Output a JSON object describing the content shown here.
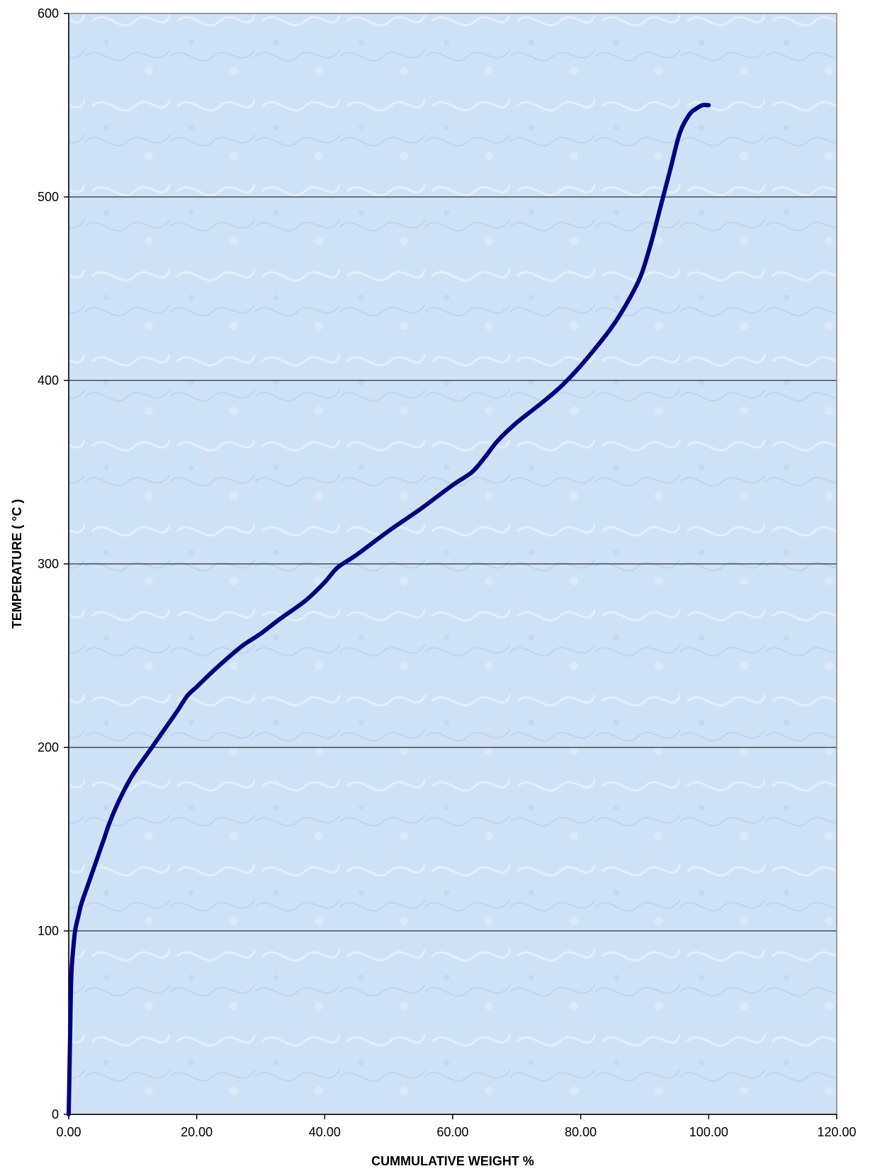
{
  "chart_data": {
    "type": "line",
    "title": "",
    "xlabel": "CUMMULATIVE WEIGHT %",
    "ylabel": "TEMPERATURE ( °C )",
    "xlim": [
      0,
      120
    ],
    "ylim": [
      0,
      600
    ],
    "x_ticks": [
      "0.00",
      "20.00",
      "40.00",
      "60.00",
      "80.00",
      "100.00",
      "120.00"
    ],
    "y_ticks": [
      "0",
      "100",
      "200",
      "300",
      "400",
      "500",
      "600"
    ],
    "grid": "horizontal",
    "legend": "none",
    "colors": {
      "line": "#000080",
      "plot_background": "#cfe2f5",
      "grid": "#000000"
    },
    "series": [
      {
        "x": [
          0,
          0.2,
          0.4,
          0.7,
          1.0,
          1.5,
          2.0,
          3.0,
          4.0,
          5.5,
          6.5,
          8.0,
          10.0,
          13.0,
          15.0,
          17.0,
          18.5,
          20.0,
          23.0,
          27.0,
          30.0,
          33.0,
          37.0,
          40.0,
          42.0,
          45.0,
          50.0,
          55.0,
          60.0,
          63.0,
          65.0,
          67.0,
          70.0,
          74.0,
          77.0,
          80.0,
          84.0,
          86.0,
          88.0,
          89.5,
          91.0,
          92.5,
          94.0,
          95.5,
          97.0,
          98.0,
          99.0,
          100.0
        ],
        "y": [
          0,
          40,
          75,
          90,
          100,
          108,
          115,
          125,
          135,
          150,
          160,
          172,
          185,
          200,
          210,
          220,
          228,
          233,
          243,
          255,
          262,
          270,
          280,
          290,
          298,
          305,
          318,
          330,
          343,
          350,
          358,
          367,
          377,
          388,
          397,
          408,
          425,
          435,
          447,
          458,
          475,
          495,
          515,
          535,
          545,
          548,
          550,
          550
        ]
      }
    ]
  }
}
